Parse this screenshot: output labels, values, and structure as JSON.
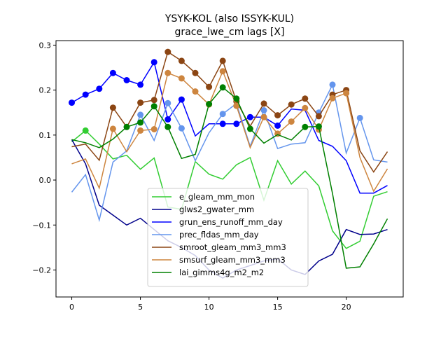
{
  "chart_data": {
    "type": "line",
    "title_line1": "YSYK-KOL (also ISSYK-KUL)",
    "title_line2": "grace_lwe_cm lags [X]",
    "xlim": [
      -1.15,
      24.15
    ],
    "ylim": [
      -0.26,
      0.31
    ],
    "xticks": [
      0,
      5,
      10,
      15,
      20
    ],
    "yticks": [
      -0.2,
      -0.1,
      0.0,
      0.1,
      0.2,
      0.3
    ],
    "ytick_labels": [
      "−0.2",
      "−0.1",
      "0.0",
      "0.1",
      "0.2",
      "0.3"
    ],
    "x": [
      0,
      1,
      2,
      3,
      4,
      5,
      6,
      7,
      8,
      9,
      10,
      11,
      12,
      13,
      14,
      15,
      16,
      17,
      18,
      19,
      20,
      21,
      22,
      23
    ],
    "legend_position": "lower center",
    "series": [
      {
        "name": "e_gleam_mm_mon",
        "color": "#32cd32",
        "values": [
          0.085,
          0.11,
          0.08,
          0.047,
          0.055,
          0.024,
          0.049,
          -0.06,
          -0.065,
          0.041,
          0.013,
          0.002,
          0.034,
          0.05,
          -0.045,
          0.043,
          -0.009,
          0.02,
          -0.013,
          -0.113,
          -0.152,
          -0.136,
          -0.036,
          -0.026
        ],
        "markers": [
          1
        ]
      },
      {
        "name": "glws2_gwater_mm",
        "color": "#00008b",
        "values": [
          0.09,
          0.036,
          -0.056,
          -0.078,
          -0.1,
          -0.085,
          -0.11,
          -0.135,
          -0.15,
          -0.168,
          -0.2,
          -0.218,
          -0.2,
          -0.19,
          -0.18,
          -0.175,
          -0.2,
          -0.21,
          -0.18,
          -0.165,
          -0.11,
          -0.121,
          -0.12,
          -0.11
        ],
        "markers": []
      },
      {
        "name": "grun_ens_runoff_mm_day",
        "color": "#0000ff",
        "values": [
          0.172,
          0.19,
          0.203,
          0.238,
          0.222,
          0.212,
          0.262,
          0.135,
          0.179,
          0.098,
          0.125,
          0.125,
          0.125,
          0.14,
          0.14,
          0.121,
          0.158,
          0.155,
          0.088,
          0.075,
          0.043,
          -0.029,
          -0.029,
          -0.012
        ],
        "markers": [
          0,
          1,
          2,
          3,
          4,
          5,
          6,
          7,
          8,
          11,
          12,
          13,
          15
        ]
      },
      {
        "name": "prec_fldas_mm_day",
        "color": "#6495ed",
        "values": [
          -0.027,
          0.012,
          -0.089,
          0.04,
          0.065,
          0.145,
          0.088,
          0.171,
          0.115,
          0.043,
          0.105,
          0.147,
          0.17,
          0.075,
          0.155,
          0.07,
          0.08,
          0.083,
          0.15,
          0.212,
          0.06,
          0.138,
          0.045,
          0.04
        ],
        "markers": [
          5,
          7,
          8,
          11,
          14,
          18,
          19,
          21
        ]
      },
      {
        "name": "smroot_gleam_mm3_mm3",
        "color": "#8b4513",
        "values": [
          0.074,
          0.08,
          0.044,
          0.161,
          0.118,
          0.172,
          0.178,
          0.285,
          0.265,
          0.238,
          0.207,
          0.265,
          0.175,
          0.12,
          0.17,
          0.144,
          0.168,
          0.181,
          0.142,
          0.19,
          0.2,
          0.065,
          0.018,
          0.063
        ],
        "markers": [
          3,
          5,
          6,
          7,
          8,
          9,
          10,
          11,
          12,
          14,
          15,
          16,
          17,
          18,
          19,
          20
        ]
      },
      {
        "name": "smsurf_gleam_mm3_mm3",
        "color": "#cd853f",
        "values": [
          0.036,
          0.047,
          -0.018,
          0.114,
          0.063,
          0.11,
          0.113,
          0.238,
          0.226,
          0.197,
          0.168,
          0.242,
          0.165,
          0.072,
          0.14,
          0.103,
          0.13,
          0.16,
          0.112,
          0.182,
          0.193,
          0.05,
          -0.025,
          0.025
        ],
        "markers": [
          3,
          5,
          6,
          7,
          8,
          9,
          10,
          11,
          12,
          14,
          15,
          16,
          17,
          18,
          19,
          20
        ]
      },
      {
        "name": "lai_gimms4g_m2_m2",
        "color": "#008000",
        "values": [
          0.09,
          0.083,
          0.072,
          0.091,
          0.118,
          0.128,
          0.164,
          0.118,
          0.048,
          0.057,
          0.169,
          0.206,
          0.181,
          0.114,
          0.082,
          0.101,
          0.089,
          0.118,
          0.119,
          -0.03,
          -0.196,
          -0.193,
          -0.142,
          -0.086
        ],
        "markers": [
          4,
          5,
          6,
          7,
          10,
          11,
          12,
          13,
          17,
          18
        ]
      }
    ]
  }
}
